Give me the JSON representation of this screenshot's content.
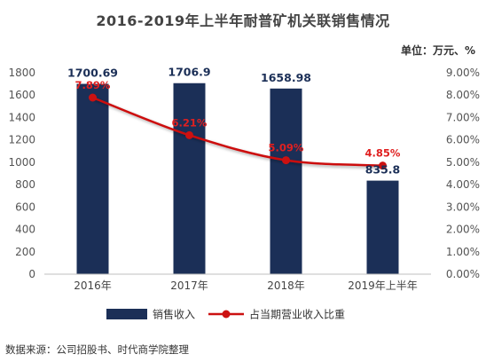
{
  "header": {
    "title": "2016-2019年上半年耐普矿机关联销售情况",
    "unit": "单位：万元、%"
  },
  "footer": {
    "source": "数据来源：公司招股书、时代商学院整理"
  },
  "chart_data": {
    "type": "bar",
    "categories": [
      "2016年",
      "2017年",
      "2018年",
      "2019年上半年"
    ],
    "series": [
      {
        "name": "销售收入",
        "type": "bar",
        "axis": "left",
        "values": [
          1700.69,
          1706.9,
          1658.98,
          835.8
        ],
        "labels": [
          "1700.69",
          "1706.9",
          "1658.98",
          "835.8"
        ],
        "color": "#1b2f57"
      },
      {
        "name": "占当期营业收入比重",
        "type": "line",
        "axis": "right",
        "values": [
          7.89,
          6.21,
          5.09,
          4.85
        ],
        "labels": [
          "7.89%",
          "6.21%",
          "5.09%",
          "4.85%"
        ],
        "color": "#cc1111"
      }
    ],
    "y_left": {
      "min": 0,
      "max": 1800,
      "step": 200,
      "ticks": [
        "0",
        "200",
        "400",
        "600",
        "800",
        "1000",
        "1200",
        "1400",
        "1600",
        "1800"
      ]
    },
    "y_right": {
      "min": 0,
      "max": 9,
      "step": 1,
      "ticks": [
        "0.00%",
        "1.00%",
        "2.00%",
        "3.00%",
        "4.00%",
        "5.00%",
        "6.00%",
        "7.00%",
        "8.00%",
        "9.00%"
      ]
    },
    "grid": false,
    "legend_position": "bottom-left"
  }
}
